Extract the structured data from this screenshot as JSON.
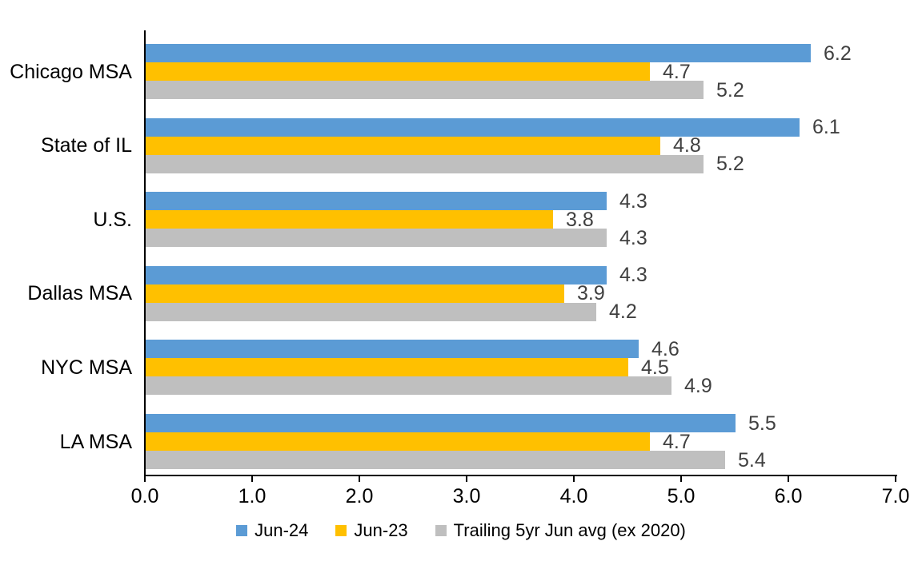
{
  "chart_data": {
    "type": "bar",
    "orientation": "horizontal",
    "title": "",
    "categories": [
      "Chicago MSA",
      "State of IL",
      "U.S.",
      "Dallas MSA",
      "NYC MSA",
      "LA MSA"
    ],
    "series": [
      {
        "name": "Jun-24",
        "color": "#5B9BD5",
        "values": [
          6.2,
          6.1,
          4.3,
          4.3,
          4.6,
          5.5
        ]
      },
      {
        "name": "Jun-23",
        "color": "#FFC000",
        "values": [
          4.7,
          4.8,
          3.8,
          3.9,
          4.5,
          4.7
        ]
      },
      {
        "name": "Trailing 5yr Jun avg (ex 2020)",
        "color": "#BFBFBF",
        "values": [
          5.2,
          5.2,
          4.3,
          4.2,
          4.9,
          5.4
        ]
      }
    ],
    "xlim": [
      0,
      7
    ],
    "x_tick_labels": [
      "0.0",
      "1.0",
      "2.0",
      "3.0",
      "4.0",
      "5.0",
      "6.0",
      "7.0"
    ],
    "data_labels_shown": true,
    "data_label_format": "0.1f",
    "grid": false,
    "legend_position": "bottom",
    "axis_color": "#000000",
    "data_label_color": "#404040",
    "text_color": "#000000"
  }
}
